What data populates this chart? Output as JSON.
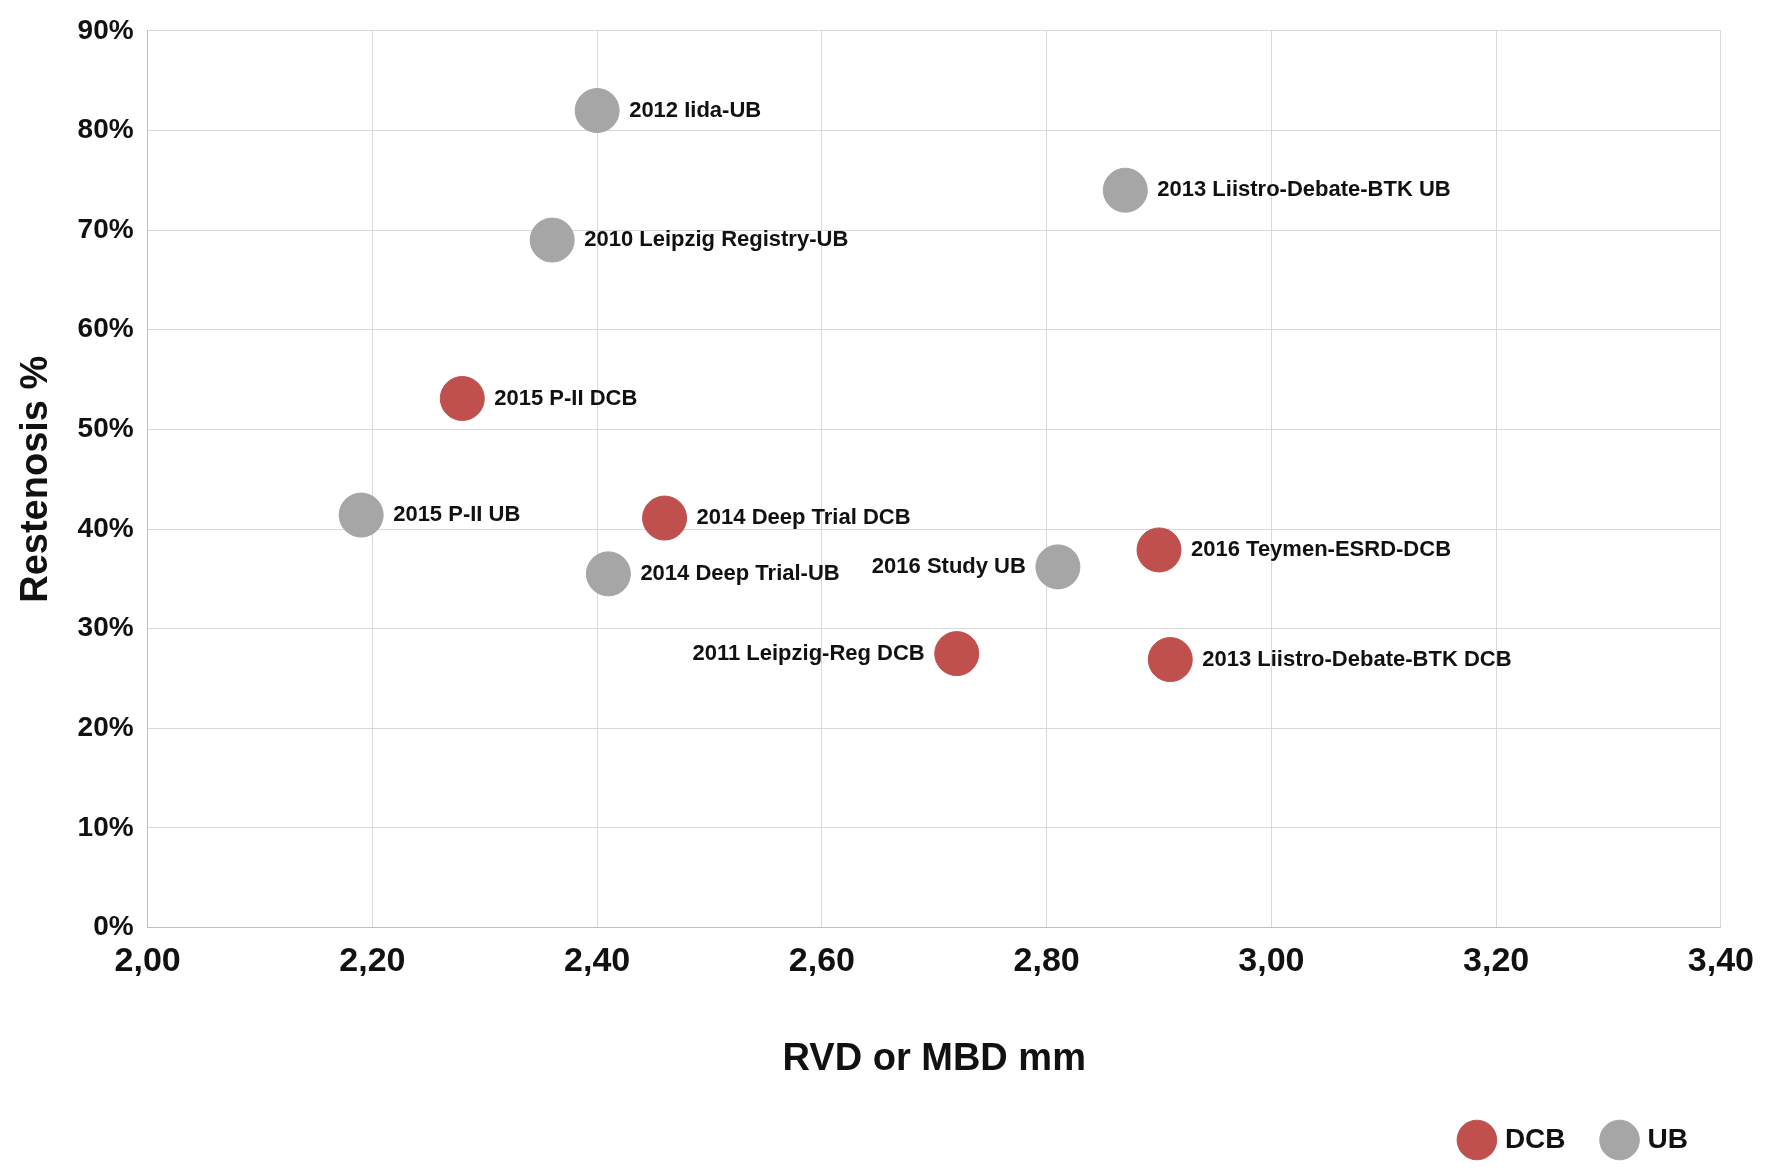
{
  "chart_data": {
    "type": "scatter",
    "xlabel": "RVD or MBD mm",
    "ylabel": "Restenosis %",
    "xlim": [
      2,
      3.4
    ],
    "xticks": [
      {
        "value": 2,
        "label": "2,00"
      },
      {
        "value": 2.2,
        "label": "2,20"
      },
      {
        "value": 2.4,
        "label": "2,40"
      },
      {
        "value": 2.6,
        "label": "2,60"
      },
      {
        "value": 2.8,
        "label": "2,80"
      },
      {
        "value": 3,
        "label": "3,00"
      },
      {
        "value": 3.2,
        "label": "3,20"
      },
      {
        "value": 3.4,
        "label": "3,40"
      }
    ],
    "ylim": [
      0,
      90
    ],
    "yticks": [
      {
        "value": 0,
        "label": "0%"
      },
      {
        "value": 10,
        "label": "10%"
      },
      {
        "value": 20,
        "label": "20%"
      },
      {
        "value": 30,
        "label": "30%"
      },
      {
        "value": 40,
        "label": "40%"
      },
      {
        "value": 50,
        "label": "50%"
      },
      {
        "value": 60,
        "label": "60%"
      },
      {
        "value": 70,
        "label": "70%"
      },
      {
        "value": 80,
        "label": "80%"
      },
      {
        "value": 90,
        "label": "90%"
      }
    ],
    "grid": true,
    "legend": "bottom right",
    "marker": "circle",
    "series": [
      {
        "name": "DCB",
        "color": "#c0504d",
        "x": [
          2.28,
          2.46,
          2.9,
          2.72,
          2.91
        ],
        "values": [
          53.1,
          41.1,
          37.9,
          27.5,
          26.9
        ]
      },
      {
        "name": "UB",
        "color": "#a6a6a6",
        "x": [
          2.4,
          2.87,
          2.36,
          2.19,
          2.41,
          2.81
        ],
        "values": [
          82,
          74,
          69,
          41.4,
          35.5,
          36.2
        ]
      }
    ],
    "annotations": [
      {
        "text": "2012 Iida-UB",
        "x": 2.4,
        "y": 82
      },
      {
        "text": "2013 Liistro-Debate-BTK UB",
        "x": 2.87,
        "y": 74
      },
      {
        "text": "2010 Leipzig Registry-UB",
        "x": 2.36,
        "y": 69
      },
      {
        "text": "2015 P-II DCB",
        "x": 2.28,
        "y": 53.1
      },
      {
        "text": "2015 P-II UB",
        "x": 2.19,
        "y": 41.4
      },
      {
        "text": "2014 Deep Trial DCB",
        "x": 2.46,
        "y": 41.1
      },
      {
        "text": "2016 Teymen-ESRD-DCB",
        "x": 2.9,
        "y": 37.9
      },
      {
        "text": "2014 Deep Trial-UB",
        "x": 2.41,
        "y": 35.5
      },
      {
        "text": "2016 Study UB",
        "x": 2.81,
        "y": 36.2
      },
      {
        "text": "2011 Leipzig-Reg DCB",
        "x": 2.72,
        "y": 27.5
      },
      {
        "text": "2013 Liistro-Debate-BTK DCB",
        "x": 2.91,
        "y": 26.9
      }
    ]
  }
}
